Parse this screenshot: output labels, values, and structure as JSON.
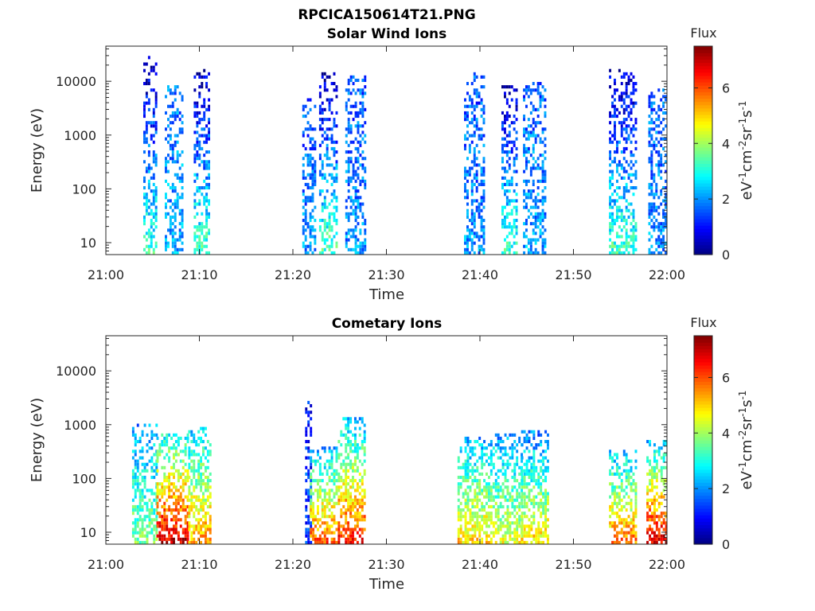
{
  "figure": {
    "title": "RPCICA150614T21.PNG"
  },
  "colorbar": {
    "title": "Flux",
    "label": "eV-1cm-2sr-1s-1",
    "ticks": [
      "0",
      "2",
      "4",
      "6"
    ],
    "range": [
      0,
      7.5
    ],
    "colormap": "jet"
  },
  "chart_data": [
    {
      "type": "heatmap",
      "title": "Solar Wind Ions",
      "xlabel": "Time",
      "ylabel": "Energy (eV)",
      "x_ticks": [
        "21:00",
        "21:10",
        "21:20",
        "21:30",
        "21:40",
        "21:50",
        "22:00"
      ],
      "x_range_minutes": [
        0,
        60
      ],
      "y_ticks": [
        "10",
        "100",
        "1000",
        "10000"
      ],
      "y_scale": "log",
      "y_range": [
        6,
        45000
      ],
      "flux_range": [
        0,
        7.5
      ],
      "bursts": [
        {
          "start_min": 4.0,
          "end_min": 5.3,
          "emax_eV": 30000,
          "flux_high_E": 0.3,
          "flux_low_E": 3.2
        },
        {
          "start_min": 6.3,
          "end_min": 8.2,
          "emax_eV": 9000,
          "flux_high_E": 1.8,
          "flux_low_E": 2.2
        },
        {
          "start_min": 9.4,
          "end_min": 11.0,
          "emax_eV": 18000,
          "flux_high_E": 0.4,
          "flux_low_E": 3.3
        },
        {
          "start_min": 21.0,
          "end_min": 22.3,
          "emax_eV": 5000,
          "flux_high_E": 1.5,
          "flux_low_E": 2.0
        },
        {
          "start_min": 22.8,
          "end_min": 24.8,
          "emax_eV": 14000,
          "flux_high_E": 0.3,
          "flux_low_E": 3.4
        },
        {
          "start_min": 25.6,
          "end_min": 27.8,
          "emax_eV": 12000,
          "flux_high_E": 1.5,
          "flux_low_E": 2.0
        },
        {
          "start_min": 38.3,
          "end_min": 40.5,
          "emax_eV": 14000,
          "flux_high_E": 1.5,
          "flux_low_E": 2.0
        },
        {
          "start_min": 42.3,
          "end_min": 43.9,
          "emax_eV": 9000,
          "flux_high_E": 0.4,
          "flux_low_E": 3.3
        },
        {
          "start_min": 44.6,
          "end_min": 47.0,
          "emax_eV": 10000,
          "flux_high_E": 1.6,
          "flux_low_E": 2.1
        },
        {
          "start_min": 53.8,
          "end_min": 56.8,
          "emax_eV": 17000,
          "flux_high_E": 0.4,
          "flux_low_E": 3.3
        },
        {
          "start_min": 58.0,
          "end_min": 60.0,
          "emax_eV": 7000,
          "flux_high_E": 1.6,
          "flux_low_E": 2.0
        }
      ]
    },
    {
      "type": "heatmap",
      "title": "Cometary Ions",
      "xlabel": "Time",
      "ylabel": "Energy (eV)",
      "x_ticks": [
        "21:00",
        "21:10",
        "21:20",
        "21:30",
        "21:40",
        "21:50",
        "22:00"
      ],
      "x_range_minutes": [
        0,
        60
      ],
      "y_ticks": [
        "10",
        "100",
        "1000",
        "10000"
      ],
      "y_scale": "log",
      "y_range": [
        6,
        45000
      ],
      "flux_range": [
        0,
        7.5
      ],
      "bursts": [
        {
          "start_min": 2.8,
          "end_min": 5.4,
          "emax_eV": 1100,
          "flux_high_E": 2.0,
          "flux_low_E": 3.8
        },
        {
          "start_min": 5.4,
          "end_min": 8.8,
          "emax_eV": 700,
          "flux_high_E": 2.8,
          "flux_low_E": 7.0
        },
        {
          "start_min": 8.8,
          "end_min": 11.3,
          "emax_eV": 900,
          "flux_high_E": 2.4,
          "flux_low_E": 5.5
        },
        {
          "start_min": 21.3,
          "end_min": 22.0,
          "emax_eV": 3000,
          "flux_high_E": 1.0,
          "flux_low_E": 1.5
        },
        {
          "start_min": 21.8,
          "end_min": 24.8,
          "emax_eV": 400,
          "flux_high_E": 2.2,
          "flux_low_E": 6.0
        },
        {
          "start_min": 24.8,
          "end_min": 27.6,
          "emax_eV": 1400,
          "flux_high_E": 2.2,
          "flux_low_E": 6.5
        },
        {
          "start_min": 37.6,
          "end_min": 41.6,
          "emax_eV": 600,
          "flux_high_E": 2.2,
          "flux_low_E": 5.0
        },
        {
          "start_min": 41.6,
          "end_min": 44.4,
          "emax_eV": 700,
          "flux_high_E": 2.0,
          "flux_low_E": 4.6
        },
        {
          "start_min": 44.4,
          "end_min": 47.2,
          "emax_eV": 750,
          "flux_high_E": 1.8,
          "flux_low_E": 5.0
        },
        {
          "start_min": 53.8,
          "end_min": 56.8,
          "emax_eV": 350,
          "flux_high_E": 2.2,
          "flux_low_E": 5.8
        },
        {
          "start_min": 57.8,
          "end_min": 60.0,
          "emax_eV": 550,
          "flux_high_E": 2.2,
          "flux_low_E": 7.0
        }
      ]
    }
  ]
}
